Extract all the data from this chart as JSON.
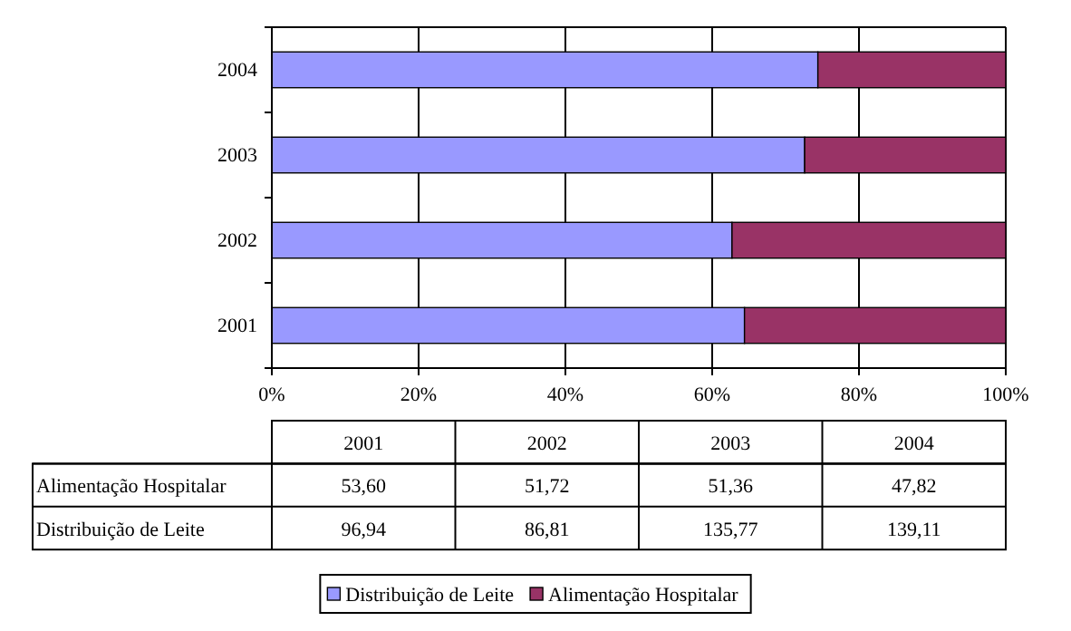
{
  "chart_data": {
    "type": "bar",
    "orientation": "horizontal",
    "stacked": true,
    "categories": [
      "2004",
      "2003",
      "2002",
      "2001"
    ],
    "series": [
      {
        "name": "Distribuição de Leite",
        "color": "#9999ff",
        "values": [
          74.4,
          72.6,
          62.7,
          64.4
        ]
      },
      {
        "name": "Alimentação Hospitalar",
        "color": "#993366",
        "values": [
          25.6,
          27.4,
          37.3,
          35.6
        ]
      }
    ],
    "xlim": [
      0,
      100
    ],
    "xticks": [
      {
        "value": 0,
        "label": "0%"
      },
      {
        "value": 20,
        "label": "20%"
      },
      {
        "value": 40,
        "label": "40%"
      },
      {
        "value": 60,
        "label": "60%"
      },
      {
        "value": 80,
        "label": "80%"
      },
      {
        "value": 100,
        "label": "100%"
      }
    ],
    "grid": "x",
    "legend": "bottom",
    "annotations": [
      "53,60",
      "51,72",
      "51,36",
      "47,82",
      "96,94",
      "86,81",
      "135,77",
      "139,11"
    ]
  }
}
